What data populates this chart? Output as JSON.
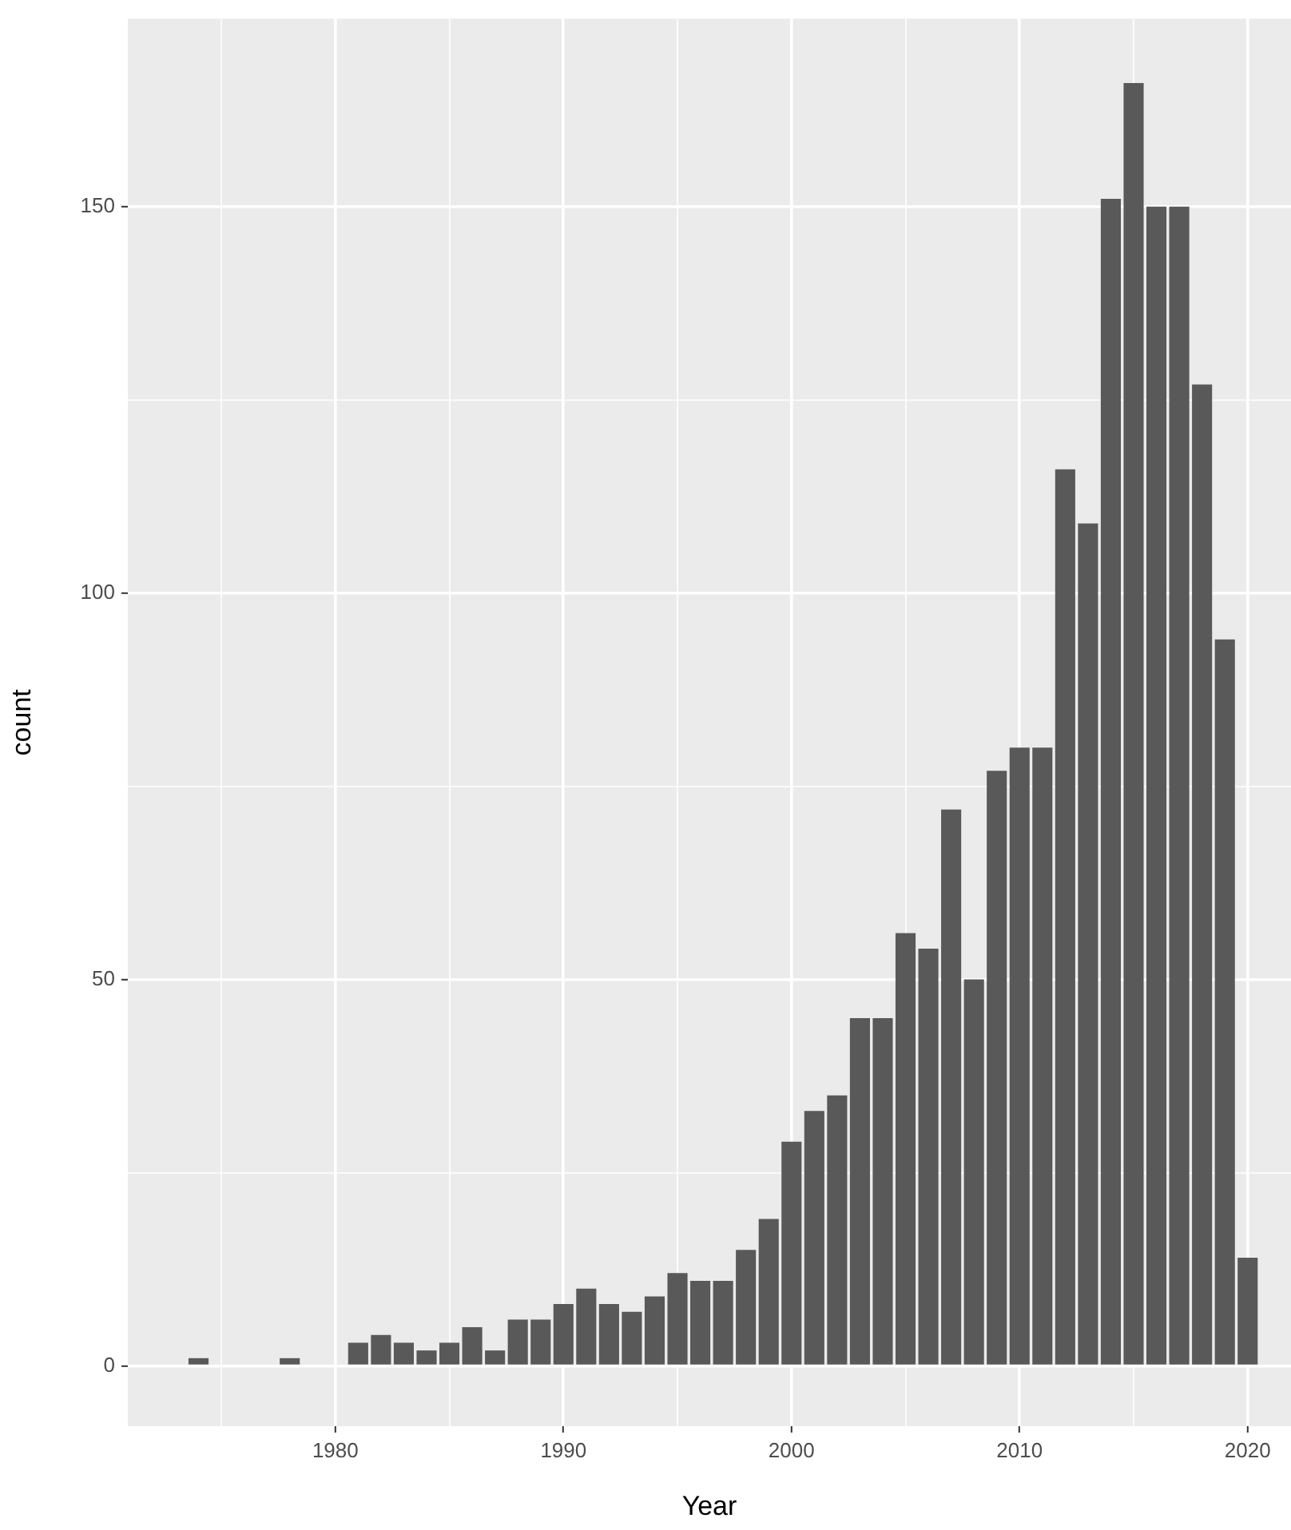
{
  "chart_data": {
    "type": "histogram",
    "xlabel": "Year",
    "ylabel": "count",
    "color": "#595959",
    "bins": [
      1973.5,
      1974.5,
      1975.5,
      1976.5,
      1977.5,
      1978.5,
      1979.5,
      1980.5,
      1981.5,
      1982.5,
      1983.5,
      1984.5,
      1985.5,
      1986.5,
      1987.5,
      1988.5,
      1989.5,
      1990.5,
      1991.5,
      1992.5,
      1993.5,
      1994.5,
      1995.5,
      1996.5,
      1997.5,
      1998.5,
      1999.5,
      2000.5,
      2001.5,
      2002.5,
      2003.5,
      2004.5,
      2005.5,
      2006.5,
      2007.5,
      2008.5,
      2009.5,
      2010.5,
      2011.5,
      2012.5,
      2013.5,
      2014.5,
      2015.5,
      2016.5,
      2017.5,
      2018.5,
      2019.5,
      2020.5
    ],
    "values": [
      1,
      0,
      0,
      0,
      1,
      0,
      0,
      3,
      4,
      3,
      2,
      3,
      5,
      2,
      6,
      6,
      8,
      10,
      8,
      7,
      9,
      12,
      11,
      11,
      15,
      19,
      29,
      33,
      35,
      45,
      45,
      56,
      54,
      72,
      50,
      77,
      80,
      80,
      116,
      109,
      151,
      166,
      150,
      150,
      127,
      94,
      14
    ],
    "xlim": [
      1970.9,
      2021.9
    ],
    "ylim": [
      -7.8,
      174.3
    ],
    "xticks": [
      {
        "value": 1975,
        "label": null
      },
      1980,
      {
        "value": 1985,
        "label": null
      },
      1990,
      {
        "value": 1995,
        "label": null
      },
      2000,
      {
        "value": 2005,
        "label": null
      },
      2010,
      {
        "value": 2015,
        "label": null
      },
      2020
    ],
    "yticks": [
      0,
      {
        "value": 25,
        "label": null
      },
      50,
      {
        "value": 75,
        "label": null
      },
      100,
      {
        "value": 125,
        "label": null
      },
      150
    ],
    "grid": true
  }
}
